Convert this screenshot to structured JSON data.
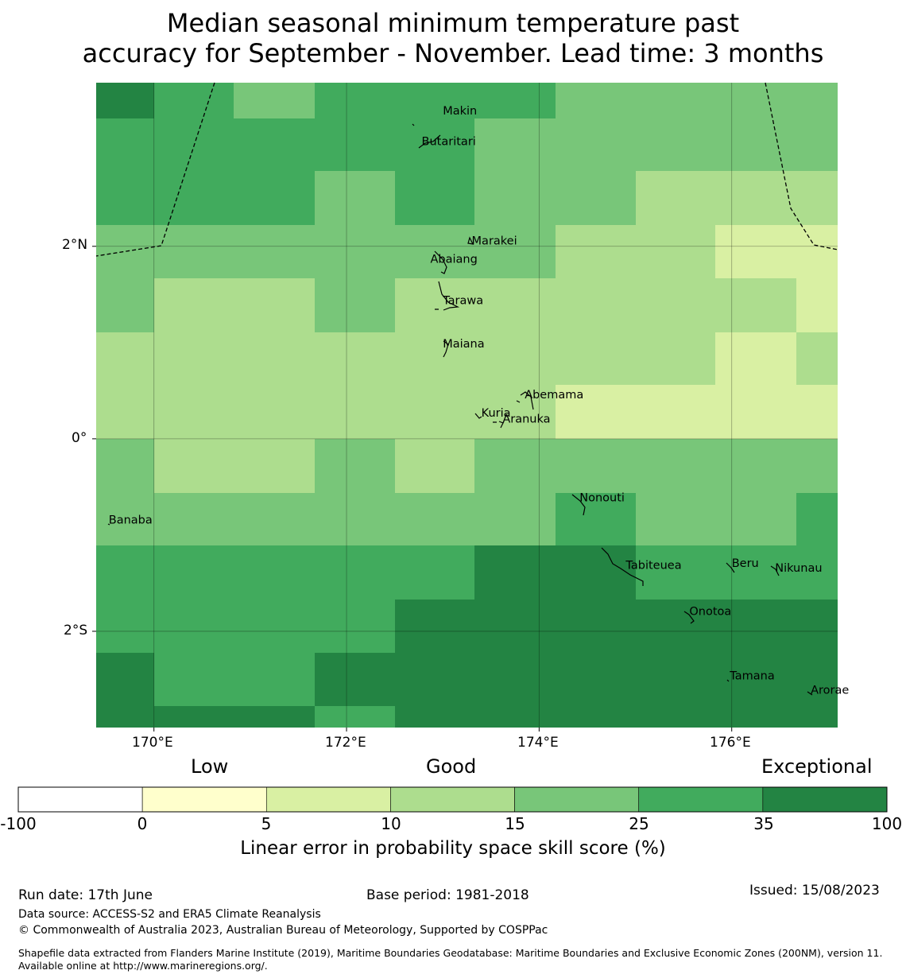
{
  "title": {
    "line1": "Median seasonal minimum temperature past",
    "line2": "accuracy for September - November. Lead time: 3 months"
  },
  "map": {
    "lat_ticks": [
      "2°N",
      "0°",
      "2°S"
    ],
    "lon_ticks": [
      "170°E",
      "172°E",
      "174°E",
      "176°E"
    ],
    "extent": {
      "lon": [
        169.4,
        177.1
      ],
      "lat": [
        -3.0,
        3.7
      ]
    },
    "palette": {
      "-100": "#ffffff",
      "0": "#ffffcc",
      "5": "#d9f0a3",
      "10": "#addd8e",
      "15": "#78c679",
      "25": "#41ab5d",
      "35": "#238443"
    },
    "grid_columns": [
      169.4,
      170.0,
      170.83,
      171.67,
      172.5,
      173.33,
      174.17,
      175.0,
      175.83,
      176.67,
      177.1
    ],
    "grid_rows": [
      3.7,
      3.33,
      2.78,
      2.22,
      1.67,
      1.11,
      0.56,
      0.0,
      -0.56,
      -1.11,
      -1.67,
      -2.22,
      -2.78,
      -3.0
    ],
    "grid_skill_bins": [
      [
        35,
        25,
        15,
        25,
        25,
        25,
        15,
        15,
        15,
        15
      ],
      [
        25,
        25,
        25,
        25,
        25,
        15,
        15,
        15,
        15,
        15
      ],
      [
        25,
        25,
        25,
        15,
        25,
        15,
        15,
        10,
        10,
        10
      ],
      [
        15,
        15,
        15,
        15,
        15,
        15,
        10,
        10,
        5,
        5
      ],
      [
        15,
        10,
        10,
        15,
        10,
        10,
        10,
        10,
        10,
        5
      ],
      [
        10,
        10,
        10,
        10,
        10,
        10,
        10,
        10,
        5,
        10
      ],
      [
        10,
        10,
        10,
        10,
        10,
        10,
        5,
        5,
        5,
        5
      ],
      [
        15,
        10,
        10,
        15,
        10,
        15,
        15,
        15,
        15,
        15
      ],
      [
        15,
        15,
        15,
        15,
        15,
        15,
        25,
        15,
        15,
        25
      ],
      [
        25,
        25,
        25,
        25,
        25,
        35,
        35,
        25,
        25,
        25
      ],
      [
        25,
        25,
        25,
        25,
        35,
        35,
        35,
        35,
        35,
        35
      ],
      [
        35,
        25,
        25,
        35,
        35,
        35,
        35,
        35,
        35,
        35
      ],
      [
        35,
        35,
        35,
        25,
        35,
        35,
        35,
        35,
        35,
        35
      ]
    ],
    "places": [
      {
        "name": "Makin",
        "lon": 173.0,
        "lat": 3.37
      },
      {
        "name": "Butaritari",
        "lon": 172.78,
        "lat": 3.05
      },
      {
        "name": "Marakei",
        "lon": 173.3,
        "lat": 2.02
      },
      {
        "name": "Abaiang",
        "lon": 172.87,
        "lat": 1.83
      },
      {
        "name": "Tarawa",
        "lon": 173.0,
        "lat": 1.4
      },
      {
        "name": "Maiana",
        "lon": 173.0,
        "lat": 0.95
      },
      {
        "name": "Abemama",
        "lon": 173.85,
        "lat": 0.42
      },
      {
        "name": "Kuria",
        "lon": 173.4,
        "lat": 0.23
      },
      {
        "name": "Aranuka",
        "lon": 173.62,
        "lat": 0.17
      },
      {
        "name": "Nonouti",
        "lon": 174.42,
        "lat": -0.65
      },
      {
        "name": "Banaba",
        "lon": 169.53,
        "lat": -0.88
      },
      {
        "name": "Beru",
        "lon": 176.0,
        "lat": -1.33
      },
      {
        "name": "Tabiteuea",
        "lon": 174.9,
        "lat": -1.35
      },
      {
        "name": "Nikunau",
        "lon": 176.45,
        "lat": -1.38
      },
      {
        "name": "Onotoa",
        "lon": 175.56,
        "lat": -1.83
      },
      {
        "name": "Tamana",
        "lon": 175.98,
        "lat": -2.5
      },
      {
        "name": "Arorae",
        "lon": 176.82,
        "lat": -2.65
      }
    ]
  },
  "colorbar": {
    "categories": [
      "Low",
      "Good",
      "Exceptional"
    ],
    "boundaries": [
      "-100",
      "0",
      "5",
      "10",
      "15",
      "25",
      "35",
      "100"
    ],
    "colors": [
      "#ffffff",
      "#ffffcc",
      "#d9f0a3",
      "#addd8e",
      "#78c679",
      "#41ab5d",
      "#238443"
    ],
    "label": "Linear error in probability space skill score (%)"
  },
  "footer": {
    "run_date": "Run date: 17th June",
    "base_period": "Base period: 1981-2018",
    "issued": "Issued: 15/08/2023",
    "data_source": "Data source: ACCESS-S2 and ERA5 Climate Reanalysis",
    "copyright": "© Commonwealth of Australia 2023, Australian Bureau of Meteorology, Supported by COSPPac",
    "shapefile": "Shapefile data extracted from Flanders Marine Institute (2019), Maritime Boundaries Geodatabase: Maritime Boundaries and Exclusive Economic Zones (200NM), version 11. Available online at http://www.marineregions.org/."
  }
}
